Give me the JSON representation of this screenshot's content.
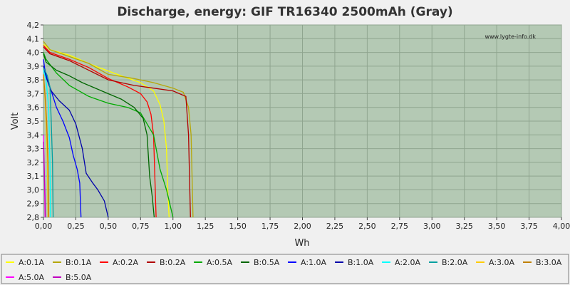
{
  "chart_data": {
    "type": "line",
    "title": "Discharge, energy: GIF TR16340 2500mAh (Gray)",
    "watermark": "www.lygte-info.dk",
    "xlabel": "Wh",
    "ylabel": "Volt",
    "xlim": [
      0,
      4
    ],
    "ylim": [
      2.8,
      4.2
    ],
    "xticks": [
      "0,00",
      "0,25",
      "0,50",
      "0,75",
      "1,00",
      "1,25",
      "1,50",
      "1,75",
      "2,00",
      "2,25",
      "2,50",
      "2,75",
      "3,00",
      "3,25",
      "3,50",
      "3,75",
      "4,00"
    ],
    "yticks": [
      "2,8",
      "2,9",
      "3,0",
      "3,1",
      "3,2",
      "3,3",
      "3,4",
      "3,5",
      "3,6",
      "3,7",
      "3,8",
      "3,9",
      "4,0",
      "4,1",
      "4,2"
    ],
    "grid": true,
    "legend_position": "bottom",
    "colors": {
      "plot_bg": "#b4c9b4",
      "page_bg": "#f0f0f0",
      "grid": "#8fa58f"
    },
    "series": [
      {
        "name": "A:0.1A",
        "color": "#ffff00",
        "points": [
          [
            0,
            4.06
          ],
          [
            0.05,
            4.02
          ],
          [
            0.2,
            3.98
          ],
          [
            0.4,
            3.9
          ],
          [
            0.6,
            3.83
          ],
          [
            0.75,
            3.78
          ],
          [
            0.85,
            3.72
          ],
          [
            0.9,
            3.62
          ],
          [
            0.93,
            3.5
          ],
          [
            0.95,
            3.3
          ],
          [
            0.96,
            3.0
          ],
          [
            0.97,
            2.8
          ]
        ]
      },
      {
        "name": "B:0.1A",
        "color": "#b5a70a",
        "points": [
          [
            0,
            4.08
          ],
          [
            0.05,
            4.02
          ],
          [
            0.2,
            3.97
          ],
          [
            0.35,
            3.92
          ],
          [
            0.5,
            3.84
          ],
          [
            0.7,
            3.81
          ],
          [
            0.85,
            3.78
          ],
          [
            1.0,
            3.74
          ],
          [
            1.08,
            3.71
          ],
          [
            1.12,
            3.6
          ],
          [
            1.14,
            3.4
          ],
          [
            1.15,
            3.0
          ],
          [
            1.155,
            2.8
          ]
        ]
      },
      {
        "name": "A:0.2A",
        "color": "#ff0000",
        "points": [
          [
            0,
            4.05
          ],
          [
            0.05,
            4.0
          ],
          [
            0.2,
            3.95
          ],
          [
            0.35,
            3.89
          ],
          [
            0.5,
            3.81
          ],
          [
            0.65,
            3.75
          ],
          [
            0.75,
            3.7
          ],
          [
            0.8,
            3.64
          ],
          [
            0.83,
            3.55
          ],
          [
            0.85,
            3.4
          ],
          [
            0.86,
            3.1
          ],
          [
            0.87,
            2.8
          ]
        ]
      },
      {
        "name": "B:0.2A",
        "color": "#b00000",
        "points": [
          [
            0,
            4.04
          ],
          [
            0.05,
            3.99
          ],
          [
            0.2,
            3.94
          ],
          [
            0.35,
            3.87
          ],
          [
            0.5,
            3.8
          ],
          [
            0.7,
            3.76
          ],
          [
            0.85,
            3.74
          ],
          [
            1.0,
            3.72
          ],
          [
            1.1,
            3.68
          ],
          [
            1.12,
            3.4
          ],
          [
            1.13,
            3.0
          ],
          [
            1.135,
            2.8
          ]
        ]
      },
      {
        "name": "A:0.5A",
        "color": "#00aa00",
        "points": [
          [
            0,
            4.0
          ],
          [
            0.02,
            3.95
          ],
          [
            0.1,
            3.85
          ],
          [
            0.2,
            3.76
          ],
          [
            0.35,
            3.68
          ],
          [
            0.5,
            3.63
          ],
          [
            0.65,
            3.6
          ],
          [
            0.75,
            3.56
          ],
          [
            0.85,
            3.4
          ],
          [
            0.9,
            3.15
          ],
          [
            0.95,
            3.0
          ],
          [
            1.0,
            2.8
          ]
        ]
      },
      {
        "name": "B:0.5A",
        "color": "#006600",
        "points": [
          [
            0,
            3.99
          ],
          [
            0.02,
            3.93
          ],
          [
            0.1,
            3.87
          ],
          [
            0.2,
            3.83
          ],
          [
            0.3,
            3.78
          ],
          [
            0.45,
            3.72
          ],
          [
            0.6,
            3.66
          ],
          [
            0.7,
            3.6
          ],
          [
            0.77,
            3.52
          ],
          [
            0.8,
            3.4
          ],
          [
            0.82,
            3.1
          ],
          [
            0.84,
            2.95
          ],
          [
            0.855,
            2.8
          ]
        ]
      },
      {
        "name": "A:1.0A",
        "color": "#0000ff",
        "points": [
          [
            0,
            3.95
          ],
          [
            0.01,
            3.88
          ],
          [
            0.03,
            3.8
          ],
          [
            0.06,
            3.72
          ],
          [
            0.1,
            3.6
          ],
          [
            0.15,
            3.5
          ],
          [
            0.2,
            3.38
          ],
          [
            0.23,
            3.25
          ],
          [
            0.26,
            3.15
          ],
          [
            0.28,
            3.05
          ],
          [
            0.29,
            2.8
          ]
        ]
      },
      {
        "name": "B:1.0A",
        "color": "#0000aa",
        "points": [
          [
            0,
            3.9
          ],
          [
            0.02,
            3.82
          ],
          [
            0.06,
            3.72
          ],
          [
            0.12,
            3.65
          ],
          [
            0.2,
            3.58
          ],
          [
            0.25,
            3.48
          ],
          [
            0.3,
            3.3
          ],
          [
            0.33,
            3.12
          ],
          [
            0.38,
            3.05
          ],
          [
            0.42,
            3.0
          ],
          [
            0.47,
            2.92
          ],
          [
            0.5,
            2.8
          ]
        ]
      },
      {
        "name": "A:2.0A",
        "color": "#00ffff",
        "points": [
          [
            0,
            3.87
          ],
          [
            0.02,
            3.8
          ],
          [
            0.04,
            3.6
          ],
          [
            0.05,
            3.2
          ],
          [
            0.055,
            2.8
          ]
        ]
      },
      {
        "name": "B:2.0A",
        "color": "#00a0a0",
        "points": [
          [
            0,
            3.89
          ],
          [
            0.03,
            3.83
          ],
          [
            0.05,
            3.75
          ],
          [
            0.06,
            3.5
          ],
          [
            0.07,
            3.2
          ],
          [
            0.075,
            2.8
          ]
        ]
      },
      {
        "name": "A:3.0A",
        "color": "#ffcc00",
        "points": [
          [
            0,
            3.82
          ],
          [
            0.01,
            3.7
          ],
          [
            0.02,
            3.5
          ],
          [
            0.03,
            3.2
          ],
          [
            0.035,
            2.8
          ]
        ]
      },
      {
        "name": "B:3.0A",
        "color": "#c08000",
        "points": [
          [
            0,
            3.84
          ],
          [
            0.01,
            3.72
          ],
          [
            0.025,
            3.5
          ],
          [
            0.035,
            3.2
          ],
          [
            0.04,
            2.8
          ]
        ]
      },
      {
        "name": "A:5.0A",
        "color": "#ff00ff",
        "points": [
          [
            0,
            3.4
          ],
          [
            0.005,
            3.2
          ],
          [
            0.01,
            2.95
          ],
          [
            0.012,
            2.8
          ]
        ]
      },
      {
        "name": "B:5.0A",
        "color": "#c000c0",
        "points": [
          [
            0,
            3.35
          ],
          [
            0.006,
            3.15
          ],
          [
            0.012,
            2.95
          ],
          [
            0.015,
            2.8
          ]
        ]
      }
    ]
  }
}
